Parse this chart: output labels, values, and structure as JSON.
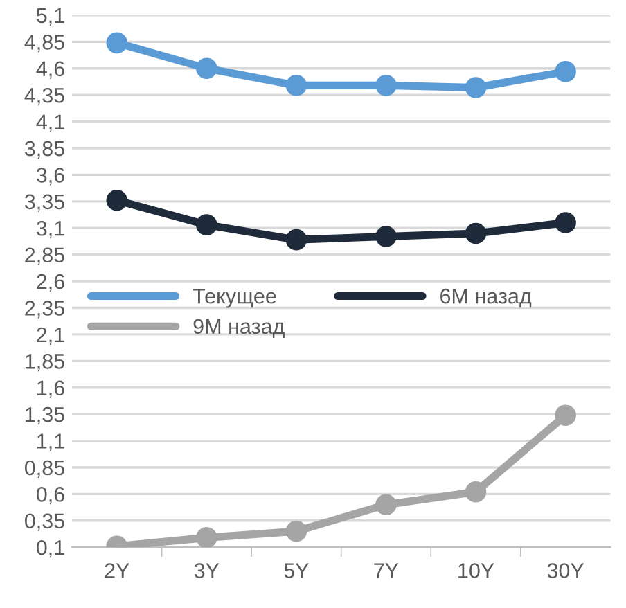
{
  "chart_data": {
    "type": "line",
    "categories": [
      "2Y",
      "3Y",
      "5Y",
      "7Y",
      "10Y",
      "30Y"
    ],
    "series": [
      {
        "name": "Текущее",
        "color": "#5b9bd5",
        "values": [
          4.84,
          4.6,
          4.44,
          4.44,
          4.42,
          4.57
        ]
      },
      {
        "name": "6М назад",
        "color": "#1f2a3a",
        "values": [
          3.36,
          3.13,
          2.99,
          3.02,
          3.05,
          3.15
        ]
      },
      {
        "name": "9М назад",
        "color": "#a5a5a5",
        "values": [
          0.11,
          0.19,
          0.25,
          0.5,
          0.62,
          1.34
        ]
      }
    ],
    "ylim": [
      0.1,
      5.1
    ],
    "yticks": [
      {
        "value": 0.1,
        "label": "0,1"
      },
      {
        "value": 0.35,
        "label": "0,35"
      },
      {
        "value": 0.6,
        "label": "0,6"
      },
      {
        "value": 0.85,
        "label": "0,85"
      },
      {
        "value": 1.1,
        "label": "1,1"
      },
      {
        "value": 1.35,
        "label": "1,35"
      },
      {
        "value": 1.6,
        "label": "1,6"
      },
      {
        "value": 1.85,
        "label": "1,85"
      },
      {
        "value": 2.1,
        "label": "2,1"
      },
      {
        "value": 2.35,
        "label": "2,35"
      },
      {
        "value": 2.6,
        "label": "2,6"
      },
      {
        "value": 2.85,
        "label": "2,85"
      },
      {
        "value": 3.1,
        "label": "3,1"
      },
      {
        "value": 3.35,
        "label": "3,35"
      },
      {
        "value": 3.6,
        "label": "3,6"
      },
      {
        "value": 3.85,
        "label": "3,85"
      },
      {
        "value": 4.1,
        "label": "4,1"
      },
      {
        "value": 4.35,
        "label": "4,35"
      },
      {
        "value": 4.6,
        "label": "4,6"
      },
      {
        "value": 4.85,
        "label": "4,85"
      },
      {
        "value": 5.1,
        "label": "5,1"
      }
    ],
    "grid": "y",
    "legend": "center left",
    "marker": "circle",
    "line_style": "solid"
  }
}
